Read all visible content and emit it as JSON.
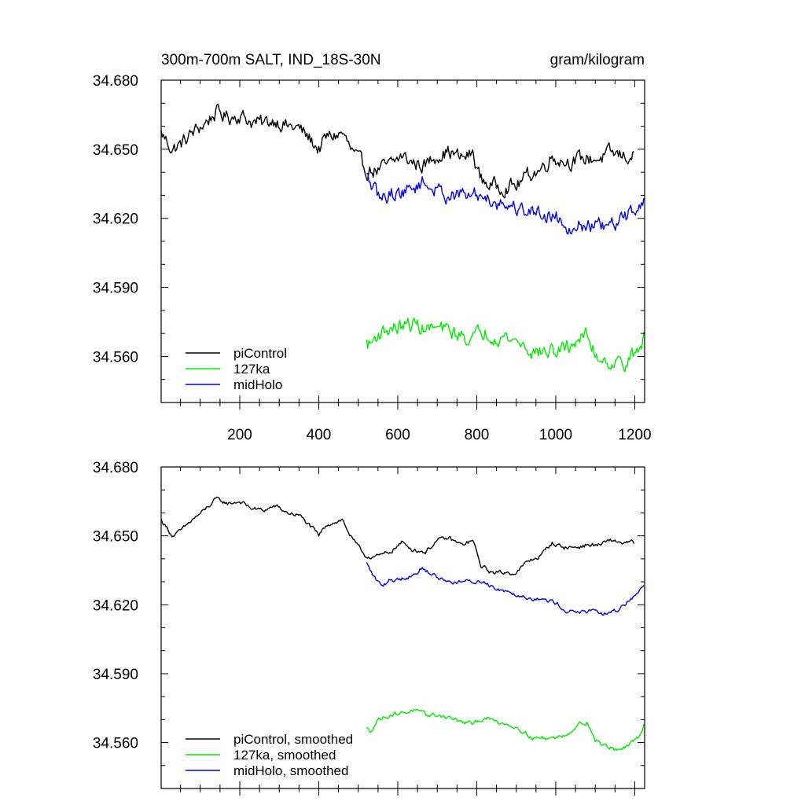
{
  "figure": {
    "title_left": "300m-700m SALT, IND_18S-30N",
    "title_right": "gram/kilogram"
  },
  "chart_data": [
    {
      "type": "line",
      "panel": "top",
      "xlabel": "",
      "ylabel": "",
      "xlim": [
        1,
        1225
      ],
      "ylim": [
        34.54,
        34.68
      ],
      "x_ticks": [
        200,
        400,
        600,
        800,
        1000,
        1200
      ],
      "x_tick_labels": [
        "200",
        "400",
        "600",
        "800",
        "1000",
        "1200"
      ],
      "y_ticks": [
        34.56,
        34.59,
        34.62,
        34.65,
        34.68
      ],
      "y_tick_labels": [
        "34.560",
        "34.590",
        "34.620",
        "34.650",
        "34.680"
      ],
      "grid": false,
      "legend_position": "bottom-left",
      "noise_amplitude": 0.0028,
      "series": [
        {
          "name": "piControl",
          "color": "#000000",
          "x": [
            1,
            30,
            50,
            80,
            110,
            140,
            170,
            200,
            230,
            260,
            290,
            320,
            350,
            380,
            400,
            420,
            440,
            460,
            480,
            500,
            520,
            550,
            580,
            610,
            640,
            670,
            700,
            730,
            760,
            790,
            810,
            840,
            870,
            900,
            930,
            960,
            990,
            1020,
            1050,
            1080,
            1110,
            1140,
            1170,
            1200
          ],
          "values": [
            34.657,
            34.65,
            34.652,
            34.657,
            34.661,
            34.666,
            34.664,
            34.665,
            34.662,
            34.661,
            34.663,
            34.66,
            34.659,
            34.654,
            34.65,
            34.655,
            34.656,
            34.657,
            34.65,
            34.645,
            34.641,
            34.641,
            34.643,
            34.647,
            34.644,
            34.643,
            34.648,
            34.649,
            34.646,
            34.648,
            34.637,
            34.634,
            34.634,
            34.634,
            34.639,
            34.641,
            34.647,
            34.645,
            34.645,
            34.646,
            34.646,
            34.648,
            34.647,
            34.647
          ]
        },
        {
          "name": "127ka",
          "color": "#00ee00",
          "x": [
            521,
            530,
            550,
            580,
            610,
            640,
            670,
            700,
            730,
            760,
            790,
            820,
            850,
            880,
            910,
            940,
            970,
            1000,
            1030,
            1060,
            1080,
            1100,
            1120,
            1150,
            1180,
            1210,
            1225
          ],
          "values": [
            34.566,
            34.565,
            34.57,
            34.572,
            34.573,
            34.574,
            34.572,
            34.572,
            34.571,
            34.569,
            34.568,
            34.571,
            34.569,
            34.568,
            34.566,
            34.562,
            34.562,
            34.562,
            34.564,
            34.568,
            34.569,
            34.561,
            34.559,
            34.557,
            34.558,
            34.562,
            34.569
          ]
        },
        {
          "name": "midHolo",
          "color": "#0000ee",
          "x": [
            521,
            540,
            560,
            580,
            600,
            620,
            640,
            660,
            680,
            700,
            730,
            760,
            790,
            820,
            850,
            880,
            910,
            940,
            970,
            1000,
            1030,
            1060,
            1090,
            1120,
            1150,
            1180,
            1210,
            1225
          ],
          "values": [
            34.638,
            34.632,
            34.628,
            34.631,
            34.631,
            34.632,
            34.633,
            34.636,
            34.634,
            34.632,
            34.63,
            34.63,
            34.63,
            34.63,
            34.627,
            34.626,
            34.624,
            34.623,
            34.622,
            34.621,
            34.617,
            34.617,
            34.617,
            34.616,
            34.617,
            34.621,
            34.626,
            34.628
          ]
        }
      ]
    },
    {
      "type": "line",
      "panel": "bottom",
      "xlabel": "",
      "ylabel": "",
      "xlim": [
        1,
        1225
      ],
      "ylim": [
        34.54,
        34.68
      ],
      "x_ticks": [
        200,
        400,
        600,
        800,
        1000,
        1200
      ],
      "x_tick_labels": [],
      "y_ticks": [
        34.56,
        34.59,
        34.62,
        34.65,
        34.68
      ],
      "y_tick_labels": [
        "34.560",
        "34.590",
        "34.620",
        "34.650",
        "34.680"
      ],
      "grid": false,
      "legend_position": "bottom-left",
      "noise_amplitude": 0.0008,
      "series": [
        {
          "name": "piControl, smoothed",
          "color": "#000000",
          "x": [
            1,
            30,
            50,
            80,
            110,
            140,
            170,
            200,
            230,
            260,
            290,
            320,
            350,
            380,
            400,
            420,
            440,
            460,
            480,
            500,
            520,
            550,
            580,
            610,
            640,
            670,
            700,
            730,
            760,
            790,
            810,
            840,
            870,
            900,
            930,
            960,
            990,
            1020,
            1050,
            1080,
            1110,
            1140,
            1170,
            1200
          ],
          "values": [
            34.657,
            34.65,
            34.652,
            34.657,
            34.661,
            34.666,
            34.664,
            34.665,
            34.662,
            34.661,
            34.663,
            34.66,
            34.659,
            34.654,
            34.65,
            34.655,
            34.656,
            34.657,
            34.65,
            34.645,
            34.641,
            34.641,
            34.643,
            34.647,
            34.644,
            34.643,
            34.648,
            34.649,
            34.646,
            34.648,
            34.637,
            34.634,
            34.634,
            34.634,
            34.639,
            34.641,
            34.647,
            34.645,
            34.645,
            34.646,
            34.646,
            34.648,
            34.647,
            34.647
          ]
        },
        {
          "name": "127ka, smoothed",
          "color": "#00ee00",
          "x": [
            521,
            530,
            550,
            580,
            610,
            640,
            670,
            700,
            730,
            760,
            790,
            820,
            850,
            880,
            910,
            940,
            970,
            1000,
            1030,
            1060,
            1080,
            1100,
            1120,
            1150,
            1180,
            1210,
            1225
          ],
          "values": [
            34.566,
            34.565,
            34.57,
            34.572,
            34.573,
            34.574,
            34.572,
            34.572,
            34.571,
            34.569,
            34.568,
            34.571,
            34.569,
            34.568,
            34.566,
            34.562,
            34.562,
            34.562,
            34.564,
            34.568,
            34.569,
            34.561,
            34.559,
            34.557,
            34.558,
            34.562,
            34.569
          ]
        },
        {
          "name": "midHolo, smoothed",
          "color": "#0000ee",
          "x": [
            521,
            540,
            560,
            580,
            600,
            620,
            640,
            660,
            680,
            700,
            730,
            760,
            790,
            820,
            850,
            880,
            910,
            940,
            970,
            1000,
            1030,
            1060,
            1090,
            1120,
            1150,
            1180,
            1210,
            1225
          ],
          "values": [
            34.638,
            34.632,
            34.628,
            34.631,
            34.631,
            34.632,
            34.633,
            34.636,
            34.634,
            34.632,
            34.63,
            34.63,
            34.63,
            34.63,
            34.627,
            34.626,
            34.624,
            34.623,
            34.622,
            34.621,
            34.617,
            34.617,
            34.617,
            34.616,
            34.617,
            34.621,
            34.626,
            34.628
          ]
        }
      ]
    }
  ]
}
